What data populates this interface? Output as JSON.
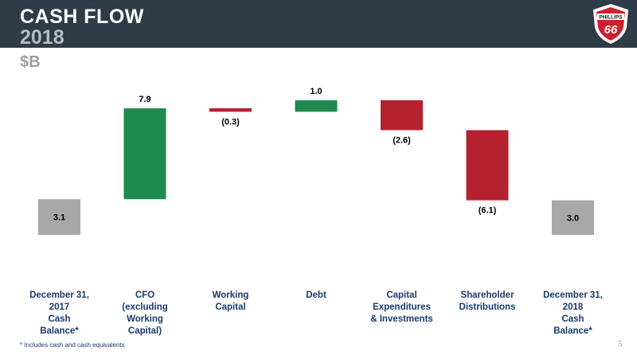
{
  "slide": {
    "title_line1": "CASH FLOW",
    "title_line2": "2018",
    "unit": "$B",
    "footnote": "*  Includes cash and cash equivalents",
    "page_number": "5",
    "logo": {
      "top_text": "PHILLIPS",
      "main_text": "66",
      "icon": "phillips-66-shield-logo"
    }
  },
  "colors": {
    "header_bg": "#2f3c47",
    "increase": "#1e8a4e",
    "decrease": "#b5212f",
    "total": "#a8a8a8",
    "label_blue": "#1a3a6b"
  },
  "chart_data": {
    "type": "bar",
    "subtype": "waterfall",
    "categories": [
      [
        "December 31,",
        "2017",
        "Cash",
        "Balance*"
      ],
      [
        "CFO",
        "(excluding",
        "Working",
        "Capital)"
      ],
      [
        "Working",
        "Capital"
      ],
      [
        "Debt"
      ],
      [
        "Capital",
        "Expenditures",
        "& Investments"
      ],
      [
        "Shareholder",
        "Distributions"
      ],
      [
        "December 31,",
        "2018",
        "Cash",
        "Balance*"
      ]
    ],
    "values": [
      3.1,
      7.9,
      -0.3,
      1.0,
      -2.6,
      -6.1,
      3.0
    ],
    "value_labels": [
      "3.1",
      "7.9",
      "(0.3)",
      "1.0",
      "(2.6)",
      "(6.1)",
      "3.0"
    ],
    "kinds": [
      "total",
      "increase",
      "decrease",
      "increase",
      "decrease",
      "decrease",
      "total"
    ],
    "ylim": [
      0,
      12
    ],
    "grid": false,
    "legend": "none"
  }
}
